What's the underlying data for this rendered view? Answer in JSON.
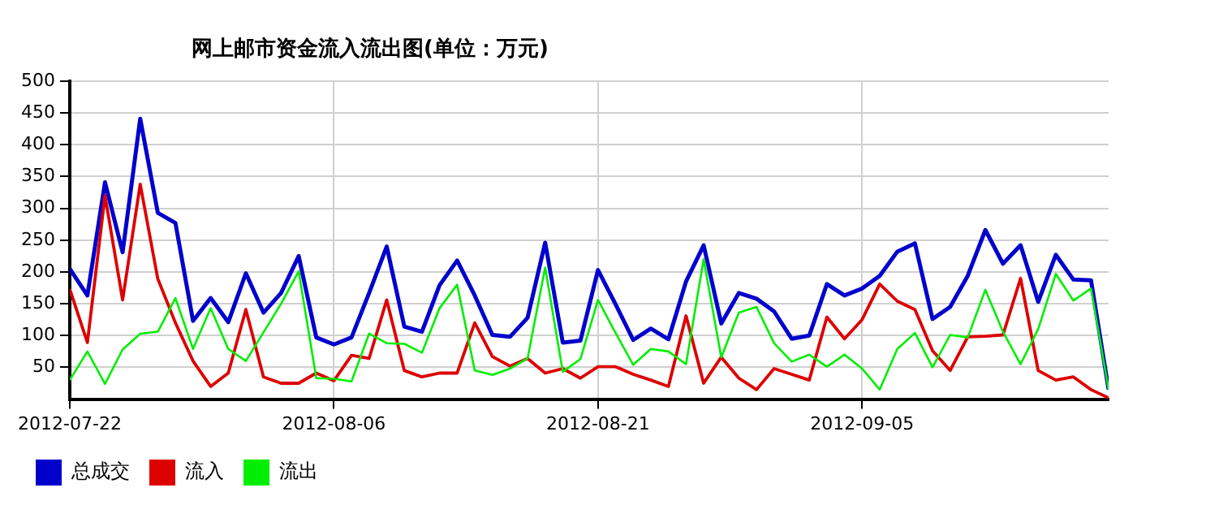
{
  "chart_data": {
    "type": "line",
    "title": "网上邮市资金流入流出图(单位：万元)",
    "x": [
      "2012-07-22",
      "2012-07-23",
      "2012-07-24",
      "2012-07-25",
      "2012-07-26",
      "2012-07-27",
      "2012-07-28",
      "2012-07-29",
      "2012-07-30",
      "2012-07-31",
      "2012-08-01",
      "2012-08-02",
      "2012-08-03",
      "2012-08-04",
      "2012-08-05",
      "2012-08-06",
      "2012-08-07",
      "2012-08-08",
      "2012-08-09",
      "2012-08-10",
      "2012-08-11",
      "2012-08-12",
      "2012-08-13",
      "2012-08-14",
      "2012-08-15",
      "2012-08-16",
      "2012-08-17",
      "2012-08-18",
      "2012-08-19",
      "2012-08-20",
      "2012-08-21",
      "2012-08-22",
      "2012-08-23",
      "2012-08-24",
      "2012-08-25",
      "2012-08-26",
      "2012-08-27",
      "2012-08-28",
      "2012-08-29",
      "2012-08-30",
      "2012-08-31",
      "2012-09-01",
      "2012-09-02",
      "2012-09-03",
      "2012-09-04",
      "2012-09-05",
      "2012-09-06",
      "2012-09-07",
      "2012-09-08",
      "2012-09-09",
      "2012-09-10",
      "2012-09-11",
      "2012-09-12",
      "2012-09-13",
      "2012-09-14",
      "2012-09-15",
      "2012-09-16",
      "2012-09-17",
      "2012-09-18",
      "2012-09-19"
    ],
    "series": [
      {
        "name": "总成交",
        "color": "#0000cc",
        "values": [
          205,
          163,
          341,
          231,
          441,
          293,
          277,
          123,
          159,
          121,
          198,
          136,
          167,
          225,
          97,
          86,
          97,
          167,
          240,
          114,
          106,
          179,
          218,
          163,
          101,
          98,
          128,
          246,
          89,
          92,
          203,
          149,
          93,
          111,
          94,
          185,
          242,
          119,
          167,
          158,
          138,
          95,
          100,
          181,
          163,
          174,
          194,
          232,
          245,
          126,
          145,
          194,
          266,
          213,
          242,
          153,
          227,
          188,
          187,
          15
        ]
      },
      {
        "name": "流入",
        "color": "#dd0000",
        "values": [
          173,
          89,
          320,
          156,
          338,
          189,
          120,
          60,
          20,
          41,
          141,
          35,
          25,
          25,
          41,
          29,
          69,
          64,
          156,
          45,
          35,
          41,
          41,
          120,
          67,
          52,
          64,
          41,
          48,
          33,
          51,
          51,
          39,
          30,
          20,
          131,
          25,
          66,
          33,
          15,
          48,
          39,
          30,
          129,
          95,
          125,
          181,
          154,
          141,
          76,
          45,
          98,
          99,
          101,
          190,
          45,
          30,
          35,
          15,
          2
        ]
      },
      {
        "name": "流出",
        "color": "#00ee00",
        "values": [
          30,
          75,
          24,
          78,
          103,
          106,
          159,
          79,
          143,
          79,
          60,
          105,
          150,
          201,
          33,
          32,
          28,
          103,
          88,
          87,
          73,
          143,
          180,
          45,
          38,
          48,
          64,
          207,
          43,
          63,
          156,
          104,
          54,
          79,
          75,
          55,
          220,
          66,
          136,
          145,
          88,
          59,
          70,
          51,
          70,
          48,
          15,
          79,
          104,
          50,
          101,
          97,
          172,
          106,
          55,
          110,
          197,
          155,
          174,
          15
        ]
      }
    ],
    "xlim": [
      "2012-07-22",
      "2012-09-19"
    ],
    "xticks": [
      "2012-07-22",
      "2012-08-06",
      "2012-08-21",
      "2012-09-05"
    ],
    "ylim": [
      0,
      500
    ],
    "yticks": [
      50,
      100,
      150,
      200,
      250,
      300,
      350,
      400,
      450,
      500
    ],
    "grid": true,
    "legend": "bottom",
    "marker": "none",
    "line_style": "solid"
  }
}
